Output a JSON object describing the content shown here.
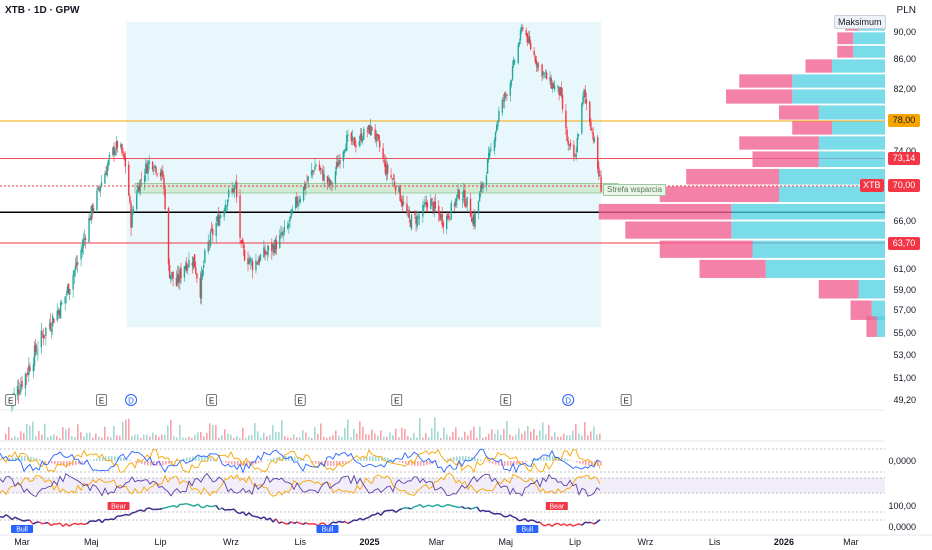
{
  "header": {
    "title": "XTB · 1D · GPW",
    "currency": "PLN"
  },
  "volume_profile_label": "Maksimum",
  "support_zone_label": "Strefa wsparcia",
  "ticker_tag": "XTB",
  "price_badges": {
    "resistance": "78,00",
    "level_mid": "73,14",
    "last": "70,00",
    "support": "63,70"
  },
  "colors": {
    "up": "#26a69a",
    "down": "#f23645",
    "orange": "#f7a600",
    "profile_pink": "#f06292",
    "profile_cyan": "#4dd0e1"
  },
  "chart_data": [
    {
      "type": "candlestick",
      "title": "XTB · 1D · GPW",
      "y_ticks": [
        "90,00",
        "86,00",
        "82,00",
        "78,00",
        "74,00",
        "70,00",
        "66,00",
        "63,70",
        "61,00",
        "59,00",
        "57,00",
        "55,00",
        "53,00",
        "51,00",
        "49,20"
      ],
      "x_ticks": [
        "Mar",
        "Maj",
        "Lip",
        "Wrz",
        "Lis",
        "2025",
        "Mar",
        "Maj",
        "Lip",
        "Wrz",
        "Lis",
        "2026",
        "Mar"
      ],
      "ylim": [
        48.5,
        92.5
      ],
      "close_path": [
        [
          "2024-02-20",
          49.0
        ],
        [
          "2024-03-05",
          51.5
        ],
        [
          "2024-03-20",
          55.0
        ],
        [
          "2024-04-05",
          57.5
        ],
        [
          "2024-04-20",
          62.0
        ],
        [
          "2024-05-01",
          67.0
        ],
        [
          "2024-05-10",
          70.5
        ],
        [
          "2024-05-20",
          74.0
        ],
        [
          "2024-05-25",
          75.0
        ],
        [
          "2024-06-01",
          72.0
        ],
        [
          "2024-06-05",
          66.0
        ],
        [
          "2024-06-10",
          69.5
        ],
        [
          "2024-06-16",
          71.5
        ],
        [
          "2024-06-22",
          73.0
        ],
        [
          "2024-06-28",
          72.0
        ],
        [
          "2024-07-03",
          71.0
        ],
        [
          "2024-07-06",
          66.5
        ],
        [
          "2024-07-08",
          61.0
        ],
        [
          "2024-07-15",
          59.5
        ],
        [
          "2024-07-22",
          61.5
        ],
        [
          "2024-07-30",
          62.0
        ],
        [
          "2024-08-05",
          59.0
        ],
        [
          "2024-08-10",
          63.0
        ],
        [
          "2024-08-20",
          66.0
        ],
        [
          "2024-08-30",
          69.0
        ],
        [
          "2024-09-05",
          70.0
        ],
        [
          "2024-09-10",
          63.0
        ],
        [
          "2024-09-20",
          61.5
        ],
        [
          "2024-09-30",
          62.5
        ],
        [
          "2024-10-10",
          63.5
        ],
        [
          "2024-10-20",
          65.0
        ],
        [
          "2024-10-28",
          68.0
        ],
        [
          "2024-11-05",
          70.0
        ],
        [
          "2024-11-15",
          72.5
        ],
        [
          "2024-11-22",
          71.0
        ],
        [
          "2024-11-28",
          70.0
        ],
        [
          "2024-12-05",
          73.0
        ],
        [
          "2024-12-12",
          75.5
        ],
        [
          "2024-12-20",
          75.0
        ],
        [
          "2024-12-28",
          76.5
        ],
        [
          "2025-01-03",
          77.0
        ],
        [
          "2025-01-10",
          74.5
        ],
        [
          "2025-01-15",
          72.0
        ],
        [
          "2025-01-25",
          70.0
        ],
        [
          "2025-02-05",
          66.0
        ],
        [
          "2025-02-15",
          66.5
        ],
        [
          "2025-02-22",
          68.5
        ],
        [
          "2025-03-01",
          67.0
        ],
        [
          "2025-03-08",
          66.0
        ],
        [
          "2025-03-15",
          67.5
        ],
        [
          "2025-03-22",
          69.5
        ],
        [
          "2025-03-28",
          68.0
        ],
        [
          "2025-04-03",
          66.0
        ],
        [
          "2025-04-10",
          70.0
        ],
        [
          "2025-04-18",
          74.0
        ],
        [
          "2025-04-25",
          79.0
        ],
        [
          "2025-05-05",
          83.0
        ],
        [
          "2025-05-12",
          88.0
        ],
        [
          "2025-05-16",
          91.0
        ],
        [
          "2025-05-22",
          88.0
        ],
        [
          "2025-05-30",
          85.0
        ],
        [
          "2025-06-08",
          83.0
        ],
        [
          "2025-06-18",
          81.5
        ],
        [
          "2025-06-25",
          74.5
        ],
        [
          "2025-07-01",
          73.0
        ],
        [
          "2025-07-05",
          78.0
        ],
        [
          "2025-07-09",
          81.5
        ],
        [
          "2025-07-13",
          79.0
        ],
        [
          "2025-07-17",
          76.0
        ],
        [
          "2025-07-21",
          72.0
        ],
        [
          "2025-07-24",
          70.0
        ]
      ],
      "price_levels": [
        {
          "name": "resistance",
          "value": 78.0,
          "color": "#f7a600"
        },
        {
          "name": "level_mid",
          "value": 73.14,
          "color": "#f23645"
        },
        {
          "name": "last",
          "value": 70.0,
          "color": "#f23645"
        },
        {
          "name": "key",
          "value": 67.0,
          "color": "#000000"
        },
        {
          "name": "support",
          "value": 63.7,
          "color": "#f23645"
        }
      ],
      "support_zone": [
        69.2,
        70.3
      ],
      "highlight_range": [
        "2024-06-01",
        "2025-07-24"
      ],
      "highlight_ylim": [
        55.5,
        91.5
      ],
      "event_markers": [
        {
          "date": "2024-02-20",
          "label": "E"
        },
        {
          "date": "2024-05-10",
          "label": "E"
        },
        {
          "date": "2024-06-05",
          "label": "D"
        },
        {
          "date": "2024-08-15",
          "label": "E"
        },
        {
          "date": "2024-11-01",
          "label": "E"
        },
        {
          "date": "2025-01-25",
          "label": "E"
        },
        {
          "date": "2025-05-01",
          "label": "E"
        },
        {
          "date": "2025-06-25",
          "label": "D"
        },
        {
          "date": "2025-08-15",
          "label": "E"
        }
      ],
      "volume_profile": {
        "bins": [
          {
            "price": 91.0,
            "pink": 0.05,
            "cyan": 0.1
          },
          {
            "price": 89.0,
            "pink": 0.06,
            "cyan": 0.12
          },
          {
            "price": 87.0,
            "pink": 0.06,
            "cyan": 0.12
          },
          {
            "price": 85.0,
            "pink": 0.1,
            "cyan": 0.2
          },
          {
            "price": 83.0,
            "pink": 0.2,
            "cyan": 0.35
          },
          {
            "price": 81.0,
            "pink": 0.25,
            "cyan": 0.35
          },
          {
            "price": 79.0,
            "pink": 0.15,
            "cyan": 0.25
          },
          {
            "price": 77.0,
            "pink": 0.15,
            "cyan": 0.2
          },
          {
            "price": 75.0,
            "pink": 0.3,
            "cyan": 0.25
          },
          {
            "price": 73.0,
            "pink": 0.25,
            "cyan": 0.25
          },
          {
            "price": 71.0,
            "pink": 0.35,
            "cyan": 0.4
          },
          {
            "price": 69.0,
            "pink": 0.45,
            "cyan": 0.4
          },
          {
            "price": 67.0,
            "pink": 0.5,
            "cyan": 0.58
          },
          {
            "price": 65.0,
            "pink": 0.4,
            "cyan": 0.58
          },
          {
            "price": 63.0,
            "pink": 0.35,
            "cyan": 0.5
          },
          {
            "price": 61.0,
            "pink": 0.25,
            "cyan": 0.45
          },
          {
            "price": 59.0,
            "pink": 0.15,
            "cyan": 0.1
          },
          {
            "price": 57.0,
            "pink": 0.08,
            "cyan": 0.05
          },
          {
            "price": 55.5,
            "pink": 0.04,
            "cyan": 0.03
          }
        ]
      }
    },
    {
      "type": "bar",
      "name": "volume",
      "indicator": "volume"
    },
    {
      "type": "line",
      "name": "oscillator_1",
      "y_tick": "0,0000"
    },
    {
      "type": "line",
      "name": "oscillator_2",
      "y_tick": "100,00",
      "labels": [
        "Bull",
        "Bear",
        "Bull",
        "Bull",
        "Bear"
      ]
    },
    {
      "type": "line",
      "name": "oscillator_3",
      "y_tick": "0,0000"
    }
  ]
}
